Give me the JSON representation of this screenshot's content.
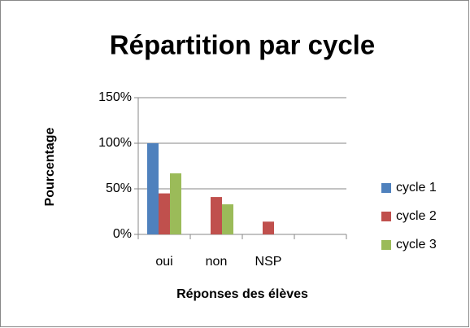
{
  "chart_data": {
    "type": "bar",
    "title": "Répartition par cycle",
    "x_label": "Réponses des élèves",
    "y_label": "Pourcentage",
    "categories": [
      "oui",
      "non",
      "NSP",
      null
    ],
    "series": [
      {
        "name": "cycle 1",
        "color": "#4f81bd",
        "values": [
          100,
          0,
          0,
          null
        ]
      },
      {
        "name": "cycle 2",
        "color": "#c0504d",
        "values": [
          45,
          41,
          14,
          null
        ]
      },
      {
        "name": "cycle 3",
        "color": "#9bbb59",
        "values": [
          67,
          33,
          0,
          null
        ]
      }
    ],
    "ylim": [
      0,
      150
    ],
    "yticks": [
      {
        "value": 0,
        "label": "0%"
      },
      {
        "value": 50,
        "label": "50%"
      },
      {
        "value": 100,
        "label": "100%"
      },
      {
        "value": 150,
        "label": "150%"
      }
    ],
    "grid": true,
    "legend": "right"
  }
}
